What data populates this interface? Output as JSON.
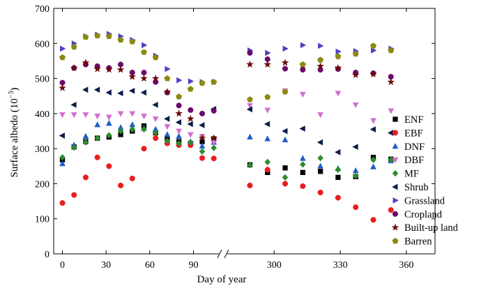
{
  "chart_data": {
    "type": "scatter",
    "title": "",
    "xlabel": "Day of year",
    "ylabel": "Surface albedo (10",
    "ylabel_sup": "−3",
    "ylabel_end": ")",
    "ylim": [
      0,
      700
    ],
    "yticks": [
      0,
      100,
      200,
      300,
      400,
      500,
      600,
      700
    ],
    "xlim_left": [
      -6,
      107
    ],
    "xlim_right": [
      280,
      373
    ],
    "xticks_left": [
      0,
      30,
      60,
      90
    ],
    "xticks_right": [
      300,
      330,
      360
    ],
    "axis_break": true,
    "grid": false,
    "legend_position": "right",
    "x_left": [
      0,
      8,
      16,
      24,
      32,
      40,
      48,
      56,
      64,
      72,
      80,
      88,
      96,
      104
    ],
    "x_right": [
      289,
      297,
      305,
      313,
      321,
      329,
      337,
      345,
      353,
      361
    ],
    "series": [
      {
        "name": "ENF",
        "color": "#000000",
        "marker": "square",
        "values": [
          268,
          305,
          320,
          330,
          333,
          340,
          350,
          365,
          345,
          330,
          320,
          315,
          320,
          328,
          null,
          254,
          232,
          245,
          232,
          235,
          218,
          220,
          275,
          270
        ]
      },
      {
        "name": "EBF",
        "color": "#e81e1e",
        "marker": "circle",
        "values": [
          145,
          168,
          218,
          275,
          250,
          195,
          215,
          300,
          330,
          315,
          310,
          310,
          273,
          272,
          null,
          195,
          240,
          200,
          193,
          175,
          160,
          133,
          97,
          125
        ]
      },
      {
        "name": "DNF",
        "color": "#1f5ec8",
        "marker": "triangle-up",
        "values": [
          257,
          310,
          335,
          368,
          372,
          360,
          368,
          358,
          355,
          340,
          335,
          320,
          307,
          318,
          null,
          333,
          328,
          325,
          272,
          250,
          243,
          237,
          248,
          265
        ]
      },
      {
        "name": "DBF",
        "color": "#d070d0",
        "marker": "triangle-down",
        "values": [
          397,
          397,
          397,
          393,
          390,
          400,
          400,
          393,
          385,
          363,
          350,
          340,
          335,
          318,
          null,
          423,
          410,
          465,
          455,
          397,
          458,
          425,
          380,
          408
        ]
      },
      {
        "name": "MF",
        "color": "#2e8b2e",
        "marker": "diamond",
        "values": [
          275,
          303,
          318,
          330,
          338,
          350,
          355,
          355,
          345,
          322,
          315,
          318,
          292,
          302,
          null,
          253,
          262,
          218,
          255,
          273,
          240,
          222,
          268,
          268
        ]
      },
      {
        "name": "Shrub",
        "color": "#0c1e4a",
        "marker": "triangle-left",
        "values": [
          337,
          425,
          468,
          468,
          460,
          458,
          465,
          460,
          425,
          385,
          375,
          370,
          367,
          413,
          null,
          412,
          370,
          350,
          357,
          318,
          290,
          305,
          355,
          345
        ]
      },
      {
        "name": "Grassland",
        "color": "#5040c0",
        "marker": "triangle-right",
        "values": [
          585,
          600,
          620,
          625,
          627,
          620,
          610,
          595,
          565,
          527,
          495,
          492,
          490,
          490,
          null,
          580,
          573,
          585,
          595,
          593,
          577,
          578,
          580,
          585
        ]
      },
      {
        "name": "Cropland",
        "color": "#6a0a6a",
        "marker": "circle",
        "values": [
          488,
          530,
          540,
          535,
          530,
          540,
          517,
          517,
          490,
          460,
          423,
          410,
          400,
          408,
          null,
          573,
          555,
          528,
          525,
          525,
          527,
          517,
          515,
          505
        ]
      },
      {
        "name": "Built-up land",
        "color": "#6e0a0a",
        "marker": "star",
        "values": [
          473,
          530,
          545,
          527,
          525,
          525,
          505,
          500,
          500,
          462,
          400,
          385,
          330,
          330,
          null,
          540,
          540,
          545,
          538,
          535,
          530,
          510,
          512,
          490
        ]
      },
      {
        "name": "Barren",
        "color": "#8a8a10",
        "marker": "pentagon",
        "values": [
          560,
          590,
          618,
          622,
          620,
          610,
          605,
          575,
          560,
          500,
          448,
          470,
          487,
          490,
          null,
          440,
          447,
          462,
          540,
          553,
          563,
          570,
          593,
          580
        ]
      }
    ]
  }
}
